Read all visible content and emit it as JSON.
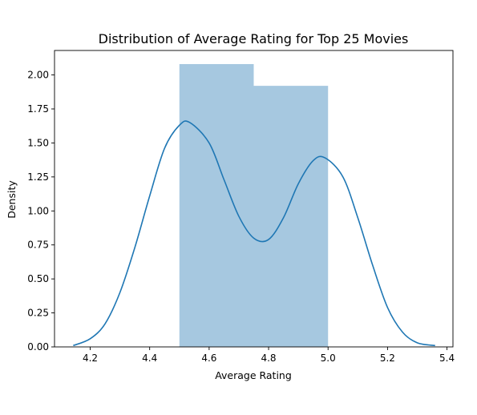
{
  "chart_data": {
    "type": "histogram",
    "title": "Distribution of Average Rating for Top 25 Movies",
    "xlabel": "Average Rating",
    "ylabel": "Density",
    "xlim": [
      4.08,
      5.42
    ],
    "ylim": [
      0,
      2.18
    ],
    "xticks": [
      4.2,
      4.4,
      4.6,
      4.8,
      5.0,
      5.2,
      5.4
    ],
    "xtick_labels": [
      "4.2",
      "4.4",
      "4.6",
      "4.8",
      "5.0",
      "5.2",
      "5.4"
    ],
    "yticks": [
      0,
      0.25,
      0.5,
      0.75,
      1.0,
      1.25,
      1.5,
      1.75,
      2.0
    ],
    "ytick_labels": [
      "0.00",
      "0.25",
      "0.50",
      "0.75",
      "1.00",
      "1.25",
      "1.50",
      "1.75",
      "2.00"
    ],
    "grid": false,
    "colors": {
      "bars": "#a6c8e0",
      "kde": "#1f77b4",
      "axes": "#000000"
    },
    "histogram": {
      "bins": [
        {
          "x0": 4.5,
          "x1": 4.75,
          "density": 2.08
        },
        {
          "x0": 4.75,
          "x1": 5.0,
          "density": 1.92
        }
      ]
    },
    "kde": {
      "x": [
        4.143,
        4.2,
        4.25,
        4.3,
        4.35,
        4.4,
        4.45,
        4.5,
        4.535,
        4.6,
        4.65,
        4.7,
        4.75,
        4.8,
        4.85,
        4.9,
        4.95,
        4.99,
        5.05,
        5.1,
        5.15,
        5.2,
        5.25,
        5.3,
        5.36
      ],
      "y": [
        0.01,
        0.06,
        0.17,
        0.4,
        0.73,
        1.11,
        1.46,
        1.63,
        1.65,
        1.5,
        1.23,
        0.96,
        0.8,
        0.79,
        0.95,
        1.2,
        1.37,
        1.39,
        1.25,
        0.95,
        0.6,
        0.29,
        0.11,
        0.03,
        0.01
      ]
    }
  }
}
